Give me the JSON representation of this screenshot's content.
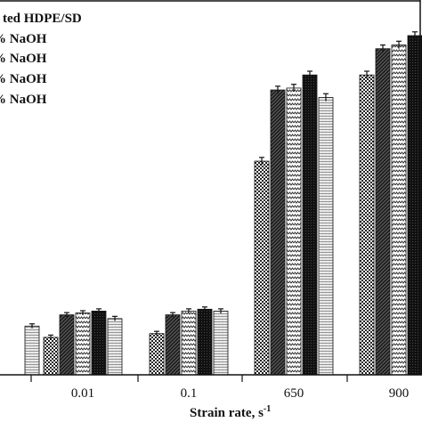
{
  "chart_data": {
    "type": "bar",
    "categories": [
      "",
      "0.01",
      "0.1",
      "650",
      "900"
    ],
    "xlabel": "Strain rate, s",
    "xlabel_sup": "-1",
    "ylabel": "",
    "ylim": [
      0,
      100
    ],
    "series": [
      {
        "name": "ted HDPE/SD",
        "pattern": "checker",
        "values": [
          null,
          10,
          11,
          57,
          80
        ],
        "errors": [
          0.6,
          0.6,
          0.6,
          1.0,
          1.0
        ]
      },
      {
        "name": "% NaOH",
        "pattern": "diag",
        "values": [
          null,
          16,
          16,
          76,
          87
        ],
        "errors": [
          0.6,
          0.6,
          0.6,
          1.0,
          1.0
        ]
      },
      {
        "name": "% NaOH",
        "pattern": "zigzag",
        "values": [
          null,
          16.5,
          17,
          76.5,
          88
        ],
        "errors": [
          0.6,
          0.6,
          0.6,
          1.0,
          1.0
        ]
      },
      {
        "name": "% NaOH",
        "pattern": "dark",
        "values": [
          null,
          17,
          17.5,
          80,
          90.5
        ],
        "errors": [
          0.6,
          0.6,
          0.6,
          1.0,
          1.0
        ]
      },
      {
        "name": "% NaOH",
        "pattern": "light",
        "values": [
          13,
          15,
          17,
          74,
          null
        ],
        "errors": [
          0.6,
          0.6,
          0.6,
          1.0,
          null
        ]
      }
    ],
    "legend_position": "top-left"
  }
}
